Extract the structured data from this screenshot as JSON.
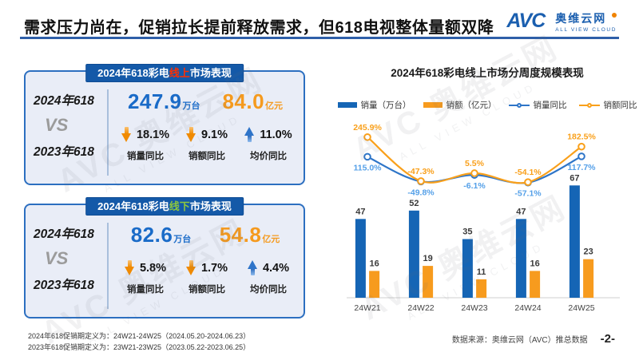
{
  "header": {
    "title": "需求压力尚在，促销拉长提前释放需求，但618电视整体量额双降",
    "logo": {
      "abbr": "AVC",
      "cn": "奥维云网",
      "en": "ALL VIEW CLOUD"
    }
  },
  "watermark": {
    "line1": "AVC 奥维云网",
    "line2": "ALL VIEW CLOUD"
  },
  "panels": [
    {
      "header": {
        "prefix": "2024年618彩电",
        "highlight": "线上",
        "suffix": "市场表现",
        "highlight_color": "#FF3000"
      },
      "compare": {
        "year_new": "2024年618",
        "vs": "VS",
        "year_old": "2023年618"
      },
      "values": [
        {
          "num": "247.9",
          "unit": "万台",
          "color": "#1A6BC8"
        },
        {
          "num": "84.0",
          "unit": "亿元",
          "color": "#F59A1E"
        }
      ],
      "metrics": [
        {
          "dir": "down",
          "value": "18.1%",
          "label": "销量同比"
        },
        {
          "dir": "down",
          "value": "9.1%",
          "label": "销额同比"
        },
        {
          "dir": "up",
          "value": "11.0%",
          "label": "均价同比"
        }
      ]
    },
    {
      "header": {
        "prefix": "2024年618彩电",
        "highlight": "线下",
        "suffix": "市场表现",
        "highlight_color": "#8CC63F"
      },
      "compare": {
        "year_new": "2024年618",
        "vs": "VS",
        "year_old": "2023年618"
      },
      "values": [
        {
          "num": "82.6",
          "unit": "万台",
          "color": "#1A6BC8"
        },
        {
          "num": "54.8",
          "unit": "亿元",
          "color": "#F59A1E"
        }
      ],
      "metrics": [
        {
          "dir": "down",
          "value": "5.8%",
          "label": "销量同比"
        },
        {
          "dir": "down",
          "value": "1.7%",
          "label": "销额同比"
        },
        {
          "dir": "up",
          "value": "4.4%",
          "label": "均价同比"
        }
      ]
    }
  ],
  "footnotes": [
    "2024年618促销期定义为：24W21-24W25（2024.05.20-2024.06.23）",
    "2023年618促销期定义为：23W21-23W25（2023.05.22-2023.06.25）"
  ],
  "chart": {
    "title": "2024年618彩电线上市场分周度规模表现",
    "legend": [
      {
        "type": "bar",
        "color": "#1565B5",
        "label": "销量（万台）"
      },
      {
        "type": "bar",
        "color": "#F79B1E",
        "label": "销额（亿元）"
      },
      {
        "type": "line",
        "color": "#2E75C8",
        "label": "销量同比"
      },
      {
        "type": "line",
        "color": "#F9A01B",
        "label": "销额同比"
      }
    ]
  },
  "chart_data": {
    "type": "bar+line",
    "title": "2024年618彩电线上市场分周度规模表现",
    "categories": [
      "24W21",
      "24W22",
      "24W23",
      "24W24",
      "24W25"
    ],
    "bar_series": [
      {
        "name": "销量（万台）",
        "color": "#1565B5",
        "values": [
          47,
          52,
          35,
          47,
          67
        ]
      },
      {
        "name": "销额（亿元）",
        "color": "#F79B1E",
        "values": [
          16,
          19,
          11,
          16,
          23
        ]
      }
    ],
    "line_series": [
      {
        "name": "销量同比",
        "color": "#2E75C8",
        "label_color": "#55A0E8",
        "unit": "%",
        "values_pct": [
          115.0,
          -49.8,
          -6.1,
          -57.1,
          117.7
        ],
        "label_pos": "below"
      },
      {
        "name": "销额同比",
        "color": "#F9A01B",
        "label_color": "#F9A01B",
        "unit": "%",
        "values_pct": [
          245.9,
          -47.3,
          5.5,
          -54.1,
          182.5
        ],
        "label_pos": "above"
      }
    ],
    "axis": {
      "grid": false,
      "x_axis_line": true,
      "y_axis_labels": false
    },
    "legend_position": "top"
  },
  "footer": {
    "source": "数据来源：奥维云网（AVC）推总数据",
    "page": "-2-"
  }
}
